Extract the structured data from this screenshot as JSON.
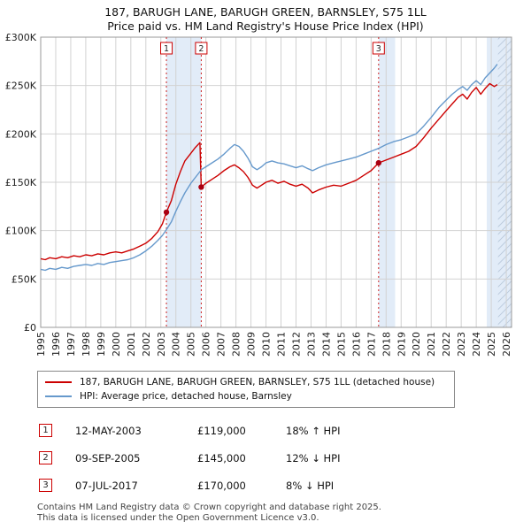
{
  "chart_data": {
    "type": "line",
    "title": "187, BARUGH LANE, BARUGH GREEN, BARNSLEY, S75 1LL",
    "subtitle": "Price paid vs. HM Land Registry's House Price Index (HPI)",
    "xlabel": "",
    "ylabel": "Price (GBP)",
    "values_unit": "GBP thousands",
    "xlim": [
      1995,
      2026.35
    ],
    "ylim": [
      0,
      300
    ],
    "grid": true,
    "legend_position": "bottom",
    "x_ticks": [
      1995,
      1996,
      1997,
      1998,
      1999,
      2000,
      2001,
      2002,
      2003,
      2004,
      2005,
      2006,
      2007,
      2008,
      2009,
      2010,
      2011,
      2012,
      2013,
      2014,
      2015,
      2016,
      2017,
      2018,
      2019,
      2020,
      2021,
      2022,
      2023,
      2024,
      2025,
      2026
    ],
    "y_ticks": [
      {
        "v": 0,
        "label": "£0"
      },
      {
        "v": 50,
        "label": "£50K"
      },
      {
        "v": 100,
        "label": "£100K"
      },
      {
        "v": 150,
        "label": "£150K"
      },
      {
        "v": 200,
        "label": "£200K"
      },
      {
        "v": 250,
        "label": "£250K"
      },
      {
        "v": 300,
        "label": "£300K"
      }
    ],
    "colors": {
      "property": "#cc0000",
      "hpi": "#6699cc",
      "band": "#e2ecf8",
      "grid": "#d2d2d2",
      "border": "#999999",
      "marker_line": "#cc2222",
      "marker_dot": "#aa0011",
      "hatch_line": "#aebfd4"
    },
    "bands": [
      [
        2003.37,
        2005.69
      ],
      [
        2017.5,
        2018.6
      ],
      [
        2024.7,
        2026.35
      ]
    ],
    "hatch_band": [
      2025.45,
      2026.35
    ],
    "series": [
      {
        "name": "187, BARUGH LANE, BARUGH GREEN, BARNSLEY, S75 1LL (detached house)",
        "color": "#cc0000",
        "points": [
          [
            1995.0,
            71
          ],
          [
            1995.3,
            70
          ],
          [
            1995.6,
            72
          ],
          [
            1996.0,
            71
          ],
          [
            1996.4,
            73
          ],
          [
            1996.8,
            72
          ],
          [
            1997.2,
            74
          ],
          [
            1997.6,
            73
          ],
          [
            1998.0,
            75
          ],
          [
            1998.4,
            74
          ],
          [
            1998.8,
            76
          ],
          [
            1999.2,
            75
          ],
          [
            1999.6,
            77
          ],
          [
            2000.0,
            78
          ],
          [
            2000.4,
            77
          ],
          [
            2000.8,
            79
          ],
          [
            2001.2,
            81
          ],
          [
            2001.6,
            84
          ],
          [
            2002.0,
            87
          ],
          [
            2002.4,
            92
          ],
          [
            2002.8,
            99
          ],
          [
            2003.1,
            107
          ],
          [
            2003.37,
            119
          ],
          [
            2003.7,
            131
          ],
          [
            2004.0,
            148
          ],
          [
            2004.3,
            161
          ],
          [
            2004.6,
            172
          ],
          [
            2005.0,
            180
          ],
          [
            2005.3,
            186
          ],
          [
            2005.6,
            191
          ],
          [
            2005.69,
            145
          ],
          [
            2006.0,
            149
          ],
          [
            2006.4,
            153
          ],
          [
            2006.8,
            157
          ],
          [
            2007.2,
            162
          ],
          [
            2007.6,
            166
          ],
          [
            2007.9,
            168
          ],
          [
            2008.2,
            165
          ],
          [
            2008.5,
            161
          ],
          [
            2008.8,
            155
          ],
          [
            2009.1,
            147
          ],
          [
            2009.4,
            144
          ],
          [
            2009.7,
            147
          ],
          [
            2010.0,
            150
          ],
          [
            2010.4,
            152
          ],
          [
            2010.8,
            149
          ],
          [
            2011.2,
            151
          ],
          [
            2011.6,
            148
          ],
          [
            2012.0,
            146
          ],
          [
            2012.4,
            148
          ],
          [
            2012.8,
            144
          ],
          [
            2013.1,
            139
          ],
          [
            2013.5,
            142
          ],
          [
            2014.0,
            145
          ],
          [
            2014.5,
            147
          ],
          [
            2015.0,
            146
          ],
          [
            2015.5,
            149
          ],
          [
            2016.0,
            152
          ],
          [
            2016.5,
            157
          ],
          [
            2017.0,
            162
          ],
          [
            2017.5,
            170
          ],
          [
            2018.0,
            173
          ],
          [
            2018.5,
            176
          ],
          [
            2019.0,
            179
          ],
          [
            2019.5,
            182
          ],
          [
            2020.0,
            187
          ],
          [
            2020.5,
            196
          ],
          [
            2021.0,
            206
          ],
          [
            2021.5,
            215
          ],
          [
            2022.0,
            224
          ],
          [
            2022.4,
            231
          ],
          [
            2022.8,
            238
          ],
          [
            2023.1,
            241
          ],
          [
            2023.4,
            236
          ],
          [
            2023.7,
            243
          ],
          [
            2024.0,
            248
          ],
          [
            2024.3,
            241
          ],
          [
            2024.6,
            247
          ],
          [
            2024.9,
            252
          ],
          [
            2025.2,
            249
          ],
          [
            2025.4,
            251
          ]
        ]
      },
      {
        "name": "HPI: Average price, detached house, Barnsley",
        "color": "#6699cc",
        "points": [
          [
            1995.0,
            60
          ],
          [
            1995.3,
            59
          ],
          [
            1995.6,
            61
          ],
          [
            1996.0,
            60
          ],
          [
            1996.4,
            62
          ],
          [
            1996.8,
            61
          ],
          [
            1997.2,
            63
          ],
          [
            1997.6,
            64
          ],
          [
            1998.0,
            65
          ],
          [
            1998.4,
            64
          ],
          [
            1998.8,
            66
          ],
          [
            1999.2,
            65
          ],
          [
            1999.6,
            67
          ],
          [
            2000.0,
            68
          ],
          [
            2000.4,
            69
          ],
          [
            2000.8,
            70
          ],
          [
            2001.2,
            72
          ],
          [
            2001.6,
            75
          ],
          [
            2002.0,
            79
          ],
          [
            2002.4,
            84
          ],
          [
            2002.8,
            90
          ],
          [
            2003.1,
            95
          ],
          [
            2003.37,
            101
          ],
          [
            2003.7,
            109
          ],
          [
            2004.0,
            120
          ],
          [
            2004.3,
            130
          ],
          [
            2004.6,
            139
          ],
          [
            2005.0,
            149
          ],
          [
            2005.3,
            155
          ],
          [
            2005.6,
            161
          ],
          [
            2005.69,
            163
          ],
          [
            2006.0,
            166
          ],
          [
            2006.4,
            170
          ],
          [
            2006.8,
            174
          ],
          [
            2007.2,
            179
          ],
          [
            2007.6,
            185
          ],
          [
            2007.9,
            189
          ],
          [
            2008.2,
            187
          ],
          [
            2008.5,
            182
          ],
          [
            2008.8,
            175
          ],
          [
            2009.1,
            166
          ],
          [
            2009.4,
            163
          ],
          [
            2009.7,
            166
          ],
          [
            2010.0,
            170
          ],
          [
            2010.4,
            172
          ],
          [
            2010.8,
            170
          ],
          [
            2011.2,
            169
          ],
          [
            2011.6,
            167
          ],
          [
            2012.0,
            165
          ],
          [
            2012.4,
            167
          ],
          [
            2012.8,
            164
          ],
          [
            2013.1,
            162
          ],
          [
            2013.5,
            165
          ],
          [
            2014.0,
            168
          ],
          [
            2014.5,
            170
          ],
          [
            2015.0,
            172
          ],
          [
            2015.5,
            174
          ],
          [
            2016.0,
            176
          ],
          [
            2016.5,
            179
          ],
          [
            2017.0,
            182
          ],
          [
            2017.5,
            185
          ],
          [
            2018.0,
            189
          ],
          [
            2018.5,
            192
          ],
          [
            2019.0,
            194
          ],
          [
            2019.5,
            197
          ],
          [
            2020.0,
            200
          ],
          [
            2020.5,
            208
          ],
          [
            2021.0,
            217
          ],
          [
            2021.5,
            227
          ],
          [
            2022.0,
            235
          ],
          [
            2022.4,
            241
          ],
          [
            2022.8,
            246
          ],
          [
            2023.1,
            249
          ],
          [
            2023.4,
            245
          ],
          [
            2023.7,
            251
          ],
          [
            2024.0,
            255
          ],
          [
            2024.3,
            251
          ],
          [
            2024.6,
            258
          ],
          [
            2024.9,
            263
          ],
          [
            2025.2,
            268
          ],
          [
            2025.4,
            272
          ]
        ]
      }
    ],
    "markers": [
      {
        "n": "1",
        "x": 2003.37,
        "y": 119
      },
      {
        "n": "2",
        "x": 2005.69,
        "y": 145
      },
      {
        "n": "3",
        "x": 2017.5,
        "y": 170
      }
    ]
  },
  "transactions": [
    {
      "n": "1",
      "date": "12-MAY-2003",
      "price": "£119,000",
      "hpi": "18% ↑ HPI"
    },
    {
      "n": "2",
      "date": "09-SEP-2005",
      "price": "£145,000",
      "hpi": "12% ↓ HPI"
    },
    {
      "n": "3",
      "date": "07-JUL-2017",
      "price": "£170,000",
      "hpi": "8% ↓ HPI"
    }
  ],
  "footer": {
    "line1": "Contains HM Land Registry data © Crown copyright and database right 2025.",
    "line2": "This data is licensed under the Open Government Licence v3.0."
  }
}
